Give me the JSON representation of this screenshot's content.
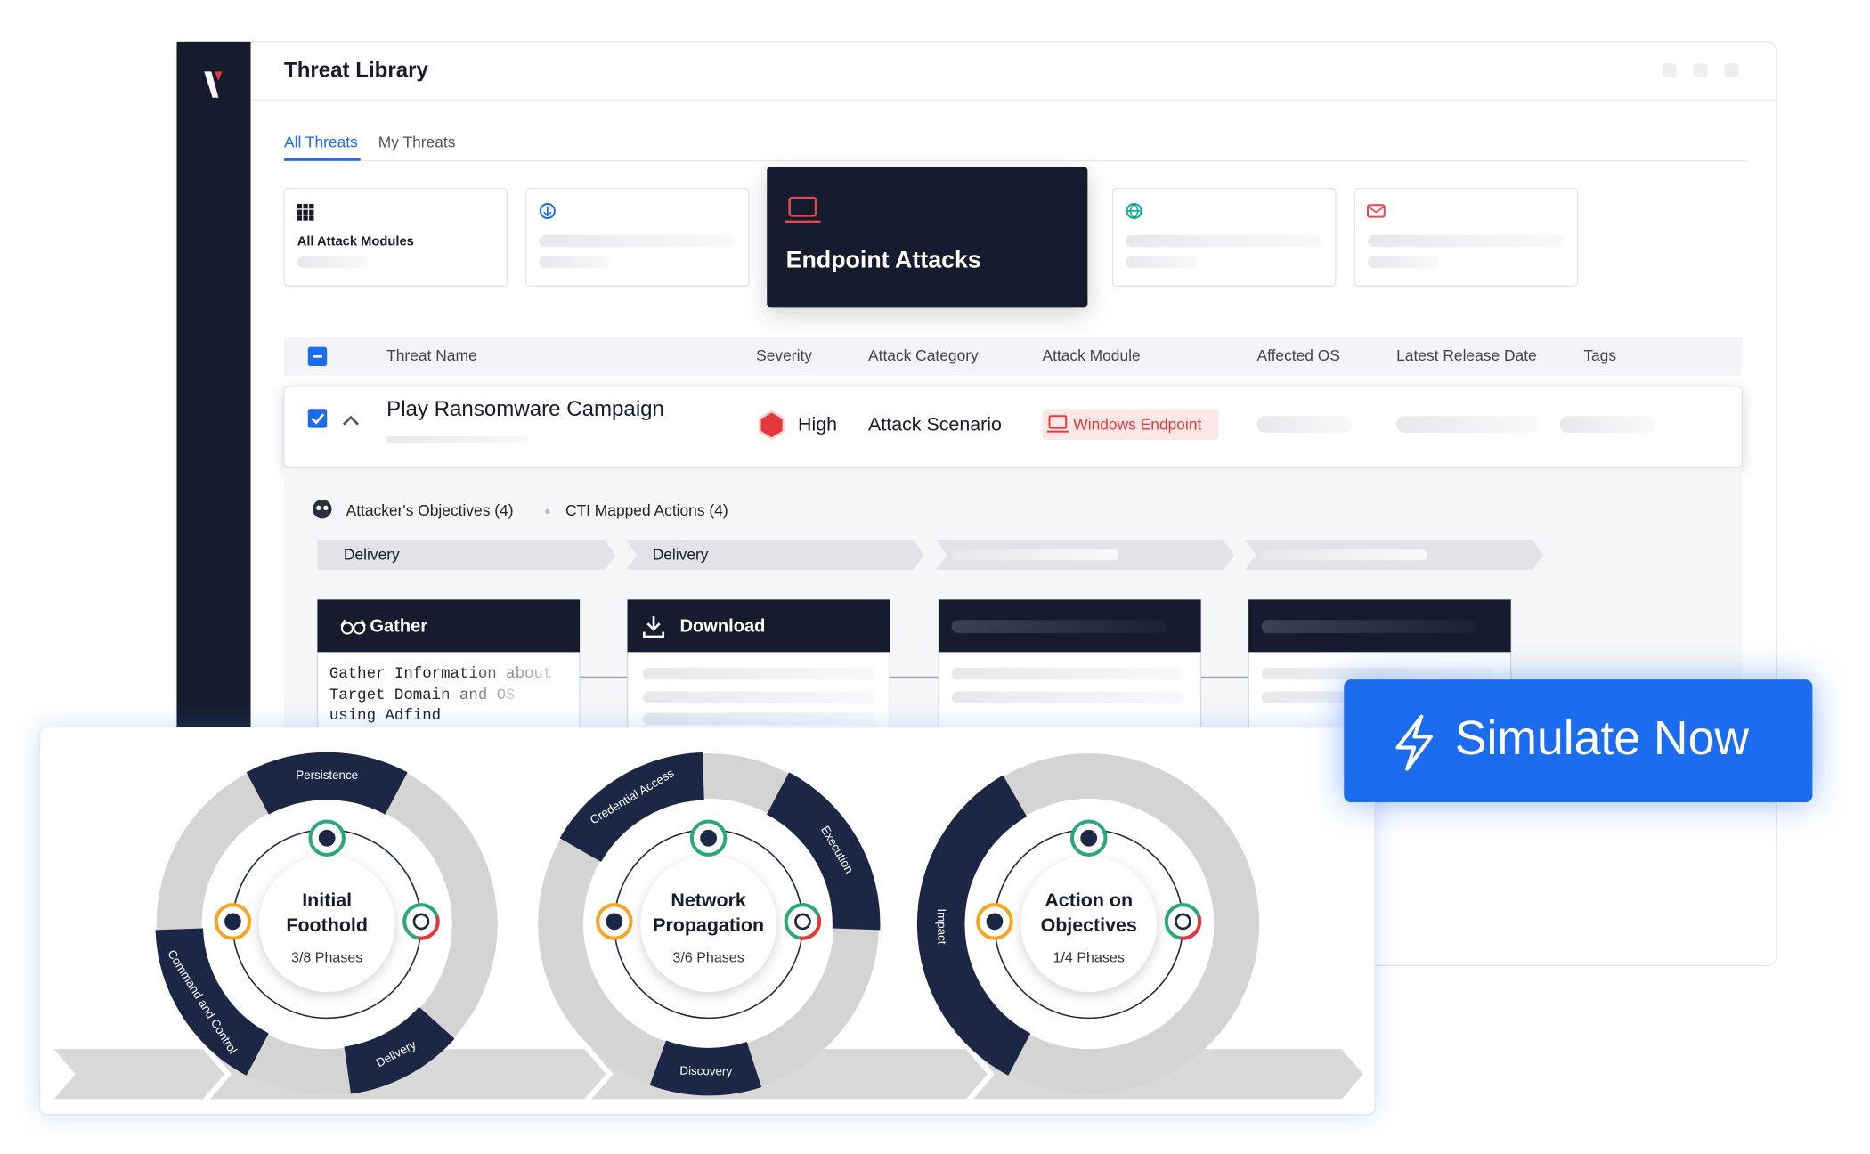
{
  "header": {
    "title": "Threat Library"
  },
  "tabs": [
    "All Threats",
    "My Threats"
  ],
  "module_cards": {
    "all": "All Attack Modules",
    "featured": "Endpoint Attacks"
  },
  "table": {
    "columns": [
      "Threat Name",
      "Severity",
      "Attack Category",
      "Attack Module",
      "Affected  OS",
      "Latest Release Date",
      "Tags"
    ],
    "row": {
      "name": "Play Ransomware Campaign",
      "severity": "High",
      "category": "Attack Scenario",
      "module": "Windows Endpoint"
    }
  },
  "details": {
    "objectives": "Attacker's Objectives (4)",
    "actions": "CTI Mapped Actions (4)",
    "phases": [
      "Delivery",
      "Delivery"
    ],
    "steps": [
      {
        "title": "Gather",
        "text": [
          "Gather Information about",
          "Target Domain and OS",
          "using Adfind"
        ]
      },
      {
        "title": "Download"
      }
    ]
  },
  "cycles": [
    {
      "title": [
        "Initial",
        "Foothold"
      ],
      "progress": "3/8 Phases",
      "labels": [
        "Persistence",
        "Command and Control",
        "Delivery"
      ]
    },
    {
      "title": [
        "Network",
        "Propagation"
      ],
      "progress": "3/6 Phases",
      "labels": [
        "Credential Access",
        "Execution",
        "Discovery"
      ]
    },
    {
      "title": [
        "Action on",
        "Objectives"
      ],
      "progress": "1/4 Phases",
      "labels": [
        "Impact"
      ]
    }
  ],
  "cta": "Simulate Now"
}
